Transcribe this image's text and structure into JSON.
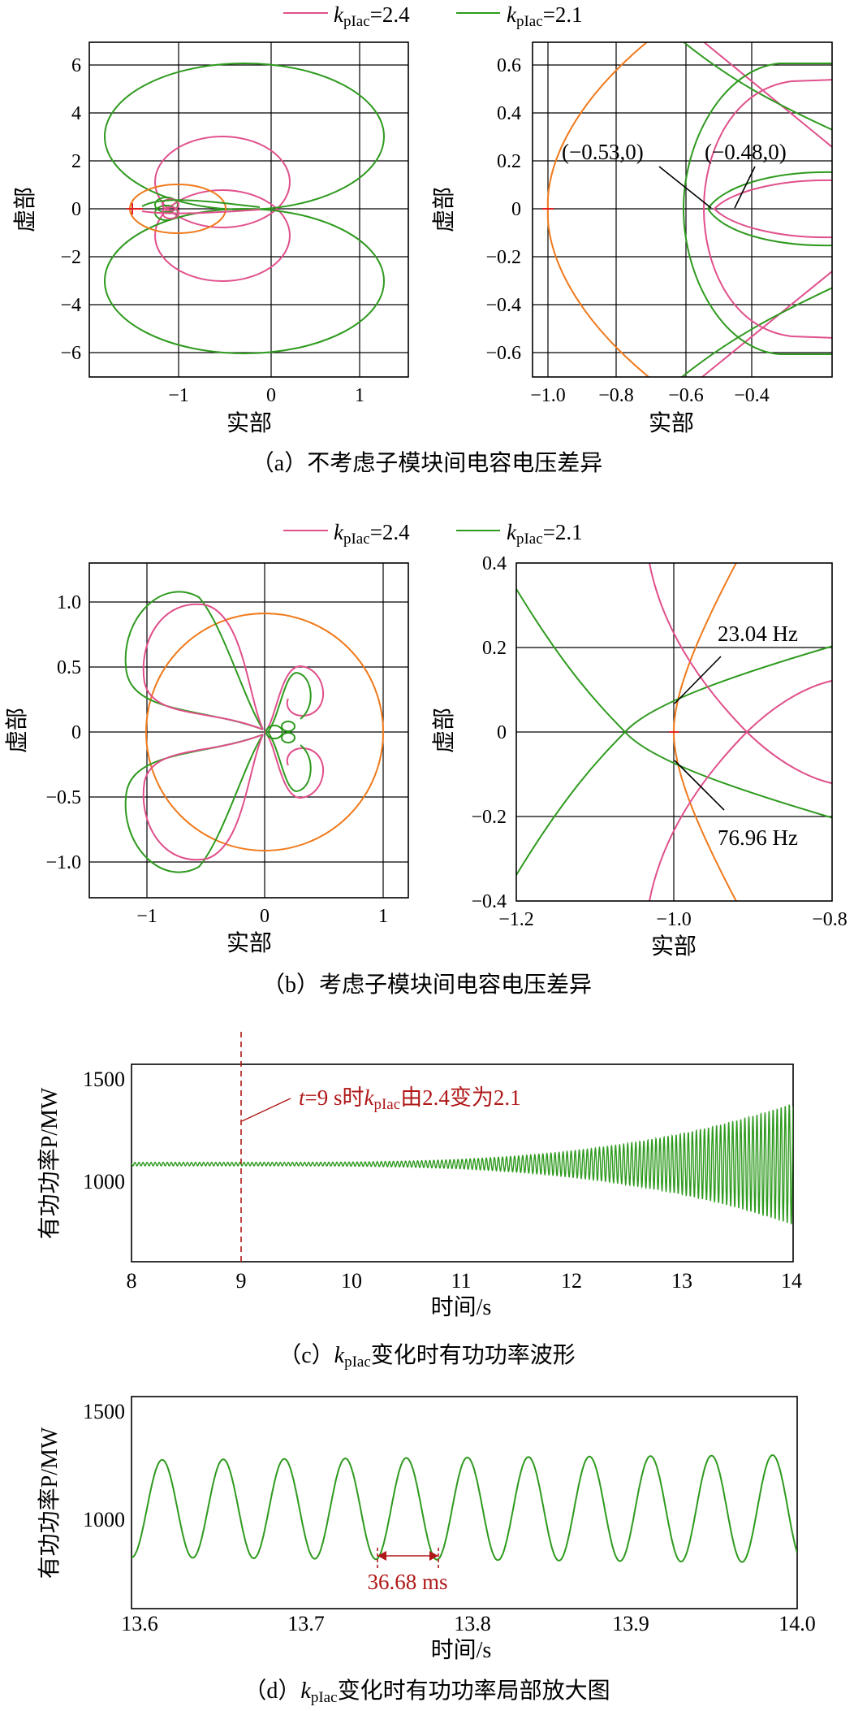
{
  "colors": {
    "pink": "#e0508c",
    "green": "#2e9a1e",
    "orange": "#f07a1c",
    "red": "#e02020",
    "darkred": "#b01818",
    "grid": "#000000"
  },
  "legend": {
    "k": "k",
    "sub": "pIac",
    "items": [
      {
        "value": "=2.4",
        "color": "#e0508c"
      },
      {
        "value": "=2.1",
        "color": "#2e9a1e"
      }
    ]
  },
  "chart_data": [
    {
      "type": "line",
      "panel": "a-left",
      "xlim": [
        -2.1,
        1.55
      ],
      "ylim": [
        -7,
        7
      ],
      "xticks": [
        -1,
        0,
        1
      ],
      "xtick_labels": [
        "−1",
        "0",
        "1"
      ],
      "yticks": [
        -6,
        -4,
        -2,
        0,
        2,
        4,
        6
      ],
      "ytick_labels": [
        "−6",
        "−4",
        "−2",
        "0",
        "2",
        "4",
        "6"
      ],
      "xlabel": "实部",
      "ylabel": "虚部",
      "grid": true,
      "series": [
        {
          "color": "pink",
          "kind": "nyquist-lobes",
          "cx": -0.72,
          "cy": 2.9,
          "rx": 0.78,
          "ry": 1.85
        },
        {
          "color": "green",
          "kind": "nyquist-lobes",
          "cx": -0.3,
          "cy": 3.1,
          "rx": 1.95,
          "ry": 2.95
        },
        {
          "color": "orange",
          "kind": "circle",
          "cx": -1.0,
          "cy": 0,
          "rx": 0.53,
          "ry": 1.0
        }
      ]
    },
    {
      "type": "line",
      "panel": "a-right",
      "xlim": [
        -1.08,
        -0.18
      ],
      "ylim": [
        -0.7,
        0.7
      ],
      "xticks": [
        -1.0,
        -0.8,
        -0.6,
        -0.4
      ],
      "xtick_labels": [
        "−1.0",
        "−0.8",
        "−0.6",
        "−0.4"
      ],
      "yticks": [
        -0.6,
        -0.4,
        -0.2,
        0,
        0.2,
        0.4,
        0.6
      ],
      "ytick_labels": [
        "−0.6",
        "−0.4",
        "−0.2",
        "0",
        "0.2",
        "0.4",
        "0.6"
      ],
      "xlabel": "实部",
      "ylabel": "虚部",
      "grid": true,
      "annotations": [
        {
          "text": "(−0.53,0)",
          "x": -0.53,
          "y": 0
        },
        {
          "text": "(−0.48,0)",
          "x": -0.48,
          "y": 0
        }
      ]
    },
    {
      "type": "line",
      "panel": "b-left",
      "xlim": [
        -1.45,
        1.2
      ],
      "ylim": [
        -1.3,
        1.3
      ],
      "xticks": [
        -1,
        0,
        1
      ],
      "xtick_labels": [
        "−1",
        "0",
        "1"
      ],
      "yticks": [
        -1.0,
        -0.5,
        0,
        0.5,
        1.0
      ],
      "ytick_labels": [
        "−1.0",
        "−0.5",
        "0",
        "0.5",
        "1.0"
      ],
      "xlabel": "实部",
      "ylabel": "虚部",
      "grid": true
    },
    {
      "type": "line",
      "panel": "b-right",
      "xlim": [
        -1.2,
        -0.8
      ],
      "ylim": [
        -0.4,
        0.4
      ],
      "xticks": [
        -1.2,
        -1.0,
        -0.8
      ],
      "xtick_labels": [
        "−1.2",
        "−1.0",
        "−0.8"
      ],
      "yticks": [
        -0.4,
        -0.2,
        0,
        0.2,
        0.4
      ],
      "ytick_labels": [
        "−0.4",
        "−0.2",
        "0",
        "0.2",
        "0.4"
      ],
      "xlabel": "实部",
      "ylabel": "虚部",
      "grid": true,
      "annotations": [
        {
          "text": "23.04 Hz",
          "x": -1.0,
          "y": 0.065
        },
        {
          "text": "76.96 Hz",
          "x": -1.0,
          "y": -0.065
        }
      ]
    },
    {
      "type": "line",
      "panel": "c",
      "xlim": [
        8,
        14
      ],
      "ylim": [
        650,
        1560
      ],
      "xticks": [
        8,
        9,
        10,
        11,
        12,
        13,
        14
      ],
      "xtick_labels": [
        "8",
        "9",
        "10",
        "11",
        "12",
        "13",
        "14"
      ],
      "yticks": [
        1000,
        1500
      ],
      "ytick_labels": [
        "1000",
        "1500"
      ],
      "xlabel": "时间/s",
      "ylabel": "有功功率P/MW",
      "grid": false,
      "series": [
        {
          "color": "green",
          "mean": 1100,
          "freq_hz": 27.3,
          "amp_start": 8,
          "growth_start": 9,
          "amp_end": 280
        }
      ],
      "event": {
        "x": 9,
        "label_pre": "=9 s时",
        "label_post": "由2.4变为2.1"
      }
    },
    {
      "type": "line",
      "panel": "d",
      "xlim": [
        13.6,
        14.0
      ],
      "ylim": [
        690,
        1560
      ],
      "xticks": [
        13.6,
        13.7,
        13.8,
        13.9,
        14.0
      ],
      "xtick_labels": [
        "13.6",
        "13.7",
        "13.8",
        "13.9",
        "14.0"
      ],
      "yticks": [
        1000,
        1500
      ],
      "ytick_labels": [
        "1000",
        "1500"
      ],
      "xlabel": "时间/s",
      "ylabel": "有功功率P/MW",
      "grid": false,
      "series": [
        {
          "color": "green",
          "mean": 1100,
          "amp": 210,
          "period_s": 0.03668
        }
      ],
      "period_marker": {
        "x0": 13.7468,
        "x1": 13.7835,
        "label": "36.68 ms"
      }
    }
  ],
  "captions": {
    "a": "（a）不考虑子模块间电容电压差异",
    "b": "（b）考虑子模块间电容电压差异",
    "c_pre": "（c）",
    "c_post": "变化时有功功率波形",
    "d_pre": "（d）",
    "d_post": "变化时有功功率局部放大图"
  }
}
